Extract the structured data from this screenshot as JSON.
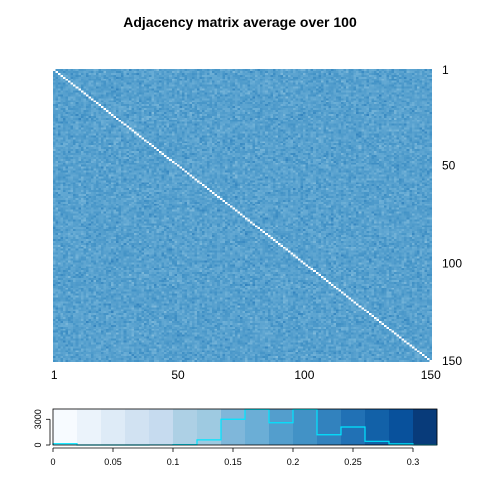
{
  "chart_data": [
    {
      "type": "heatmap",
      "title": "Adjacency matrix average over 100",
      "n_nodes": 150,
      "diagonal_value": 0,
      "value_range": [
        0.0,
        0.32
      ],
      "x_ticks": [
        "1",
        "50",
        "100",
        "150"
      ],
      "x_tick_values": [
        1,
        50,
        100,
        150
      ],
      "y_ticks_right": [
        "1",
        "50",
        "100",
        "150"
      ],
      "y_tick_values": [
        1,
        50,
        100,
        150
      ],
      "y_axis_orientation": "top-to-bottom",
      "colormap": "Blues"
    },
    {
      "type": "bar",
      "title": "",
      "x_ticks": [
        "0",
        "0.05",
        "0.1",
        "0.15",
        "0.2",
        "0.25",
        "0.3"
      ],
      "x_tick_values": [
        0,
        0.05,
        0.1,
        0.15,
        0.2,
        0.25,
        0.3
      ],
      "x_range": [
        0,
        0.32
      ],
      "y_ticks": [
        "0",
        "3000"
      ],
      "y_tick_values": [
        0,
        3000
      ],
      "y_range": [
        0,
        4200
      ],
      "bin_edges": [
        0.0,
        0.02,
        0.04,
        0.06,
        0.08,
        0.1,
        0.12,
        0.14,
        0.16,
        0.18,
        0.2,
        0.22,
        0.24,
        0.26,
        0.28,
        0.3,
        0.32
      ],
      "counts": [
        150,
        0,
        0,
        0,
        5,
        40,
        600,
        3000,
        4150,
        2600,
        4150,
        1200,
        2100,
        430,
        130,
        10
      ],
      "color_swatches": [
        "#F7FBFF",
        "#EBF3FB",
        "#DEEBF7",
        "#D1E2F2",
        "#C6DBEF",
        "#ADD0E5",
        "#9ECAE1",
        "#7FB7DA",
        "#6BAED6",
        "#539ECD",
        "#4292C6",
        "#3282BE",
        "#2171B5",
        "#1261A8",
        "#08519C",
        "#083B7A"
      ],
      "histogram_line_color": "#00E5FF"
    }
  ]
}
